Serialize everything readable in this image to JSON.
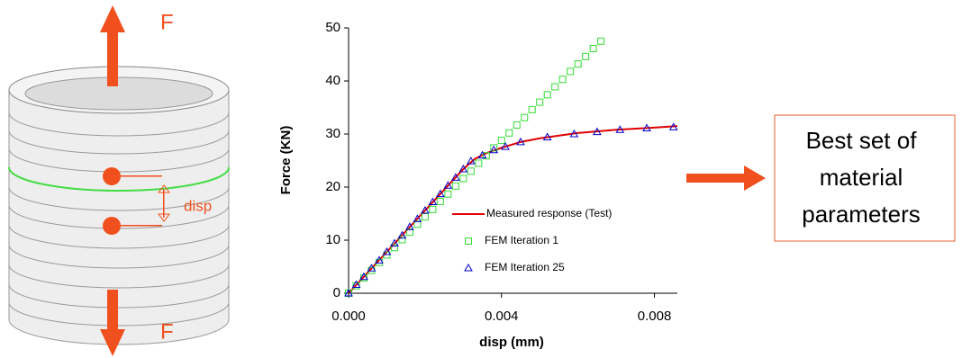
{
  "diagram": {
    "force_top": "F",
    "force_bottom": "F",
    "disp_label": "disp",
    "result_lines": [
      "Best set of",
      "material",
      "parameters"
    ]
  },
  "chart_data": {
    "type": "scatter",
    "x_label": "disp (mm)",
    "y_label": "Force (KN)",
    "xlim": [
      0,
      0.0086
    ],
    "xticks": [
      {
        "value": 0,
        "label": "0.000"
      },
      {
        "value": 0.004,
        "label": "0.004"
      },
      {
        "value": 0.008,
        "label": "0.008"
      }
    ],
    "ylim": [
      0,
      50
    ],
    "yticks": [
      0,
      10,
      20,
      30,
      40,
      50
    ],
    "grid": false,
    "legend": "lower right",
    "series": [
      {
        "name": "Measured response (Test)",
        "color": "#e00000",
        "marker": "line",
        "x": [
          0,
          0.003,
          0.0033,
          0.0036,
          0.004,
          0.0045,
          0.005,
          0.006,
          0.007,
          0.008,
          0.0086
        ],
        "values": [
          0,
          23.4,
          25.3,
          26.4,
          27.4,
          28.5,
          29.2,
          30.2,
          30.8,
          31.2,
          31.5
        ]
      },
      {
        "name": "FEM Iteration 1",
        "color": "#33dd33",
        "marker": "square",
        "x": [
          0,
          0.0002,
          0.0004,
          0.0006,
          0.0008,
          0.001,
          0.0012,
          0.0014,
          0.0016,
          0.0018,
          0.002,
          0.0022,
          0.0024,
          0.0026,
          0.0028,
          0.003,
          0.0032,
          0.0034,
          0.0036,
          0.0038,
          0.004,
          0.0042,
          0.0044,
          0.0046,
          0.0048,
          0.005,
          0.0052,
          0.0054,
          0.0056,
          0.0058,
          0.006,
          0.0062,
          0.0064,
          0.0066
        ],
        "values": [
          0,
          1.4,
          2.9,
          4.3,
          5.8,
          7.2,
          8.6,
          10.1,
          11.5,
          13.0,
          14.4,
          15.8,
          17.3,
          18.7,
          20.2,
          21.6,
          23.0,
          24.5,
          25.9,
          27.4,
          28.8,
          30.2,
          31.7,
          33.1,
          34.6,
          36.0,
          37.4,
          38.9,
          40.3,
          41.8,
          43.2,
          44.6,
          46.1,
          47.5
        ]
      },
      {
        "name": "FEM Iteration 25",
        "color": "#0000cc",
        "marker": "triangle",
        "x": [
          0,
          0.0002,
          0.0004,
          0.0006,
          0.0008,
          0.001,
          0.0012,
          0.0014,
          0.0016,
          0.0018,
          0.002,
          0.0022,
          0.0024,
          0.0026,
          0.0028,
          0.003,
          0.0032,
          0.0035,
          0.0038,
          0.0041,
          0.0045,
          0.0052,
          0.0059,
          0.0065,
          0.0071,
          0.0078,
          0.0085
        ],
        "values": [
          0,
          1.6,
          3.1,
          4.7,
          6.2,
          7.8,
          9.4,
          10.9,
          12.5,
          14.0,
          15.6,
          17.2,
          18.7,
          20.3,
          21.8,
          23.4,
          24.9,
          26.0,
          27.0,
          27.6,
          28.5,
          29.4,
          30.0,
          30.4,
          30.8,
          31.1,
          31.3
        ]
      }
    ]
  }
}
